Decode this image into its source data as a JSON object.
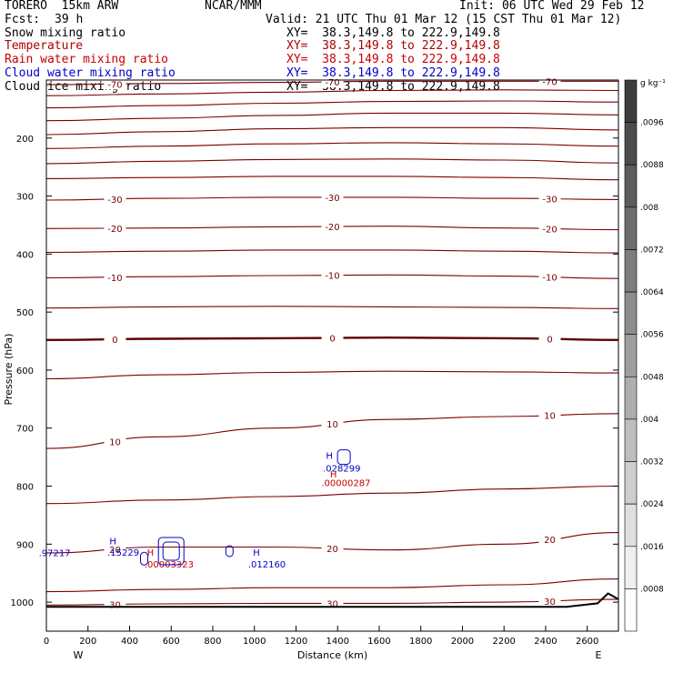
{
  "header": {
    "model": "TORERO  15km ARW",
    "org": "NCAR/MMM",
    "init": "Init: 06 UTC Wed 29 Feb 12",
    "fcst_label": "Fcst:",
    "fcst_value": "39 h",
    "valid": "Valid: 21 UTC Thu 01 Mar 12 (15 CST Thu 01 Mar 12)"
  },
  "legend": [
    {
      "name": "Snow mixing ratio",
      "xy": "XY=  38.3,149.8 to 222.9,149.8",
      "color": "#000000"
    },
    {
      "name": "Temperature",
      "xy": "XY=  38.3,149.8 to 222.9,149.8",
      "color": "#b00000"
    },
    {
      "name": "Rain water mixing ratio",
      "xy": "XY=  38.3,149.8 to 222.9,149.8",
      "color": "#c80000"
    },
    {
      "name": "Cloud water mixing ratio",
      "xy": "XY=  38.3,149.8 to 222.9,149.8",
      "color": "#0000c8"
    },
    {
      "name": "Cloud ice mixing ratio",
      "xy": "XY=  38.3,149.8 to 222.9,149.8",
      "color": "#000000"
    }
  ],
  "colors": {
    "contour": "#7a0000",
    "zero_contour": "#600000",
    "cloud": "#0000c8",
    "rain": "#c80000",
    "ground": "#000000"
  },
  "chart_data": {
    "type": "contour",
    "xlabel": "Distance (km)",
    "ylabel": "Pressure (hPa)",
    "xlim": [
      0,
      2750
    ],
    "ylim": [
      1050,
      100
    ],
    "x_ticks": [
      0,
      200,
      400,
      600,
      800,
      1000,
      1200,
      1400,
      1600,
      1800,
      2000,
      2200,
      2400,
      2600
    ],
    "y_ticks": [
      200,
      300,
      400,
      500,
      600,
      700,
      800,
      900,
      1000
    ],
    "x_left_label": "W",
    "x_right_label": "E",
    "isotherms": [
      {
        "label": "-70",
        "p": [
          108,
          106,
          104,
          102,
          102,
          102
        ]
      },
      {
        "label": "",
        "p": [
          127,
          124,
          121,
          118,
          117,
          118
        ]
      },
      {
        "label": "",
        "p": [
          148,
          144,
          140,
          137,
          136,
          138
        ]
      },
      {
        "label": "",
        "p": [
          170,
          166,
          161,
          157,
          157,
          160
        ]
      },
      {
        "label": "",
        "p": [
          194,
          189,
          184,
          182,
          182,
          186
        ]
      },
      {
        "label": "",
        "p": [
          218,
          214,
          210,
          208,
          210,
          214
        ]
      },
      {
        "label": "",
        "p": [
          244,
          240,
          237,
          236,
          238,
          243
        ]
      },
      {
        "label": "",
        "p": [
          270,
          268,
          266,
          266,
          268,
          272
        ]
      },
      {
        "label": "-30",
        "p": [
          307,
          304,
          302,
          302,
          304,
          306
        ]
      },
      {
        "label": "-20",
        "p": [
          356,
          355,
          353,
          352,
          355,
          358
        ]
      },
      {
        "label": "",
        "p": [
          397,
          395,
          393,
          393,
          395,
          398
        ]
      },
      {
        "label": "-10",
        "p": [
          441,
          439,
          437,
          436,
          438,
          442
        ]
      },
      {
        "label": "",
        "p": [
          493,
          491,
          490,
          491,
          492,
          494
        ]
      },
      {
        "label": "0",
        "p": [
          548,
          546,
          545,
          544,
          545,
          548
        ]
      },
      {
        "label": "",
        "p": [
          615,
          608,
          604,
          602,
          603,
          605
        ]
      },
      {
        "label": "10",
        "p": [
          735,
          715,
          700,
          685,
          680,
          675
        ]
      },
      {
        "label": "",
        "p": [
          830,
          824,
          818,
          812,
          805,
          800
        ]
      },
      {
        "label": "20",
        "p": [
          915,
          905,
          905,
          910,
          900,
          880
        ]
      },
      {
        "label": "",
        "p": [
          982,
          978,
          975,
          975,
          970,
          960
        ]
      },
      {
        "label": "30",
        "p": [
          1005,
          1003,
          1002,
          1002,
          1000,
          995
        ]
      }
    ],
    "isotherm_x": [
      0,
      550,
      1100,
      1650,
      2200,
      2750
    ],
    "annotations": [
      {
        "text": "H",
        "x": 1360,
        "p": 753,
        "color": "#0000c8"
      },
      {
        "text": ".028299",
        "x": 1420,
        "p": 775,
        "color": "#0000c8"
      },
      {
        "text": "H",
        "x": 1380,
        "p": 785,
        "color": "#c80000"
      },
      {
        "text": ".00000287",
        "x": 1440,
        "p": 800,
        "color": "#c80000"
      },
      {
        "text": "H",
        "x": 320,
        "p": 900,
        "color": "#0000c8"
      },
      {
        "text": ".15229",
        "x": 370,
        "p": 920,
        "color": "#0000c8"
      },
      {
        "text": "H",
        "x": 500,
        "p": 920,
        "color": "#c80000"
      },
      {
        "text": ".00003323",
        "x": 590,
        "p": 940,
        "color": "#c80000"
      },
      {
        "text": "H",
        "x": 1010,
        "p": 920,
        "color": "#0000c8"
      },
      {
        "text": ".012160",
        "x": 1060,
        "p": 940,
        "color": "#0000c8"
      },
      {
        "text": ".97217",
        "x": 40,
        "p": 921,
        "color": "#0000c8"
      }
    ],
    "colorbar": {
      "unit": "g kg⁻¹",
      "ticks": [
        ".0096",
        ".0088",
        ".008",
        ".0072",
        ".0064",
        ".0056",
        ".0048",
        ".004",
        ".0032",
        ".0024",
        ".0016",
        ".0008"
      ]
    }
  }
}
